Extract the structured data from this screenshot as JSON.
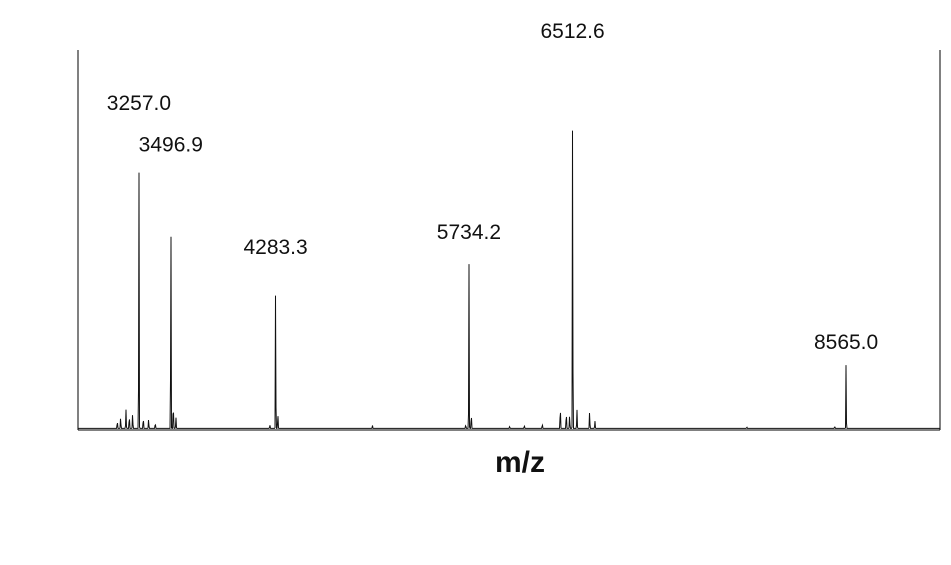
{
  "chart_data": {
    "type": "line",
    "title": "",
    "xlabel": "m/z",
    "ylabel": "",
    "xlim": [
      2800,
      9270
    ],
    "ylim": [
      0,
      100
    ],
    "grid": false,
    "legend": "none",
    "colors": {
      "trace": "#111111",
      "axis": "#000000",
      "text": "#111111"
    },
    "peaks": [
      {
        "mz": 3257.0,
        "label": "3257.0",
        "intensity": 81
      },
      {
        "mz": 3496.9,
        "label": "3496.9",
        "intensity": 70
      },
      {
        "mz": 4283.3,
        "label": "4283.3",
        "intensity": 43
      },
      {
        "mz": 5734.2,
        "label": "5734.2",
        "intensity": 47
      },
      {
        "mz": 6512.6,
        "label": "6512.6",
        "intensity": 100
      },
      {
        "mz": 8565.0,
        "label": "8565.0",
        "intensity": 18
      }
    ],
    "minor_peaks": [
      {
        "mz": 3095,
        "intensity": 2
      },
      {
        "mz": 3120,
        "intensity": 3
      },
      {
        "mz": 3160,
        "intensity": 5
      },
      {
        "mz": 3185,
        "intensity": 3.5
      },
      {
        "mz": 3210,
        "intensity": 4
      },
      {
        "mz": 3290,
        "intensity": 3
      },
      {
        "mz": 3330,
        "intensity": 2.5
      },
      {
        "mz": 3380,
        "intensity": 1.5
      },
      {
        "mz": 3515,
        "intensity": 7
      },
      {
        "mz": 3535,
        "intensity": 3
      },
      {
        "mz": 4240,
        "intensity": 1
      },
      {
        "mz": 4300,
        "intensity": 4
      },
      {
        "mz": 5010,
        "intensity": 0.8
      },
      {
        "mz": 5710,
        "intensity": 1
      },
      {
        "mz": 5752,
        "intensity": 4
      },
      {
        "mz": 6040,
        "intensity": 0.6
      },
      {
        "mz": 6150,
        "intensity": 0.8
      },
      {
        "mz": 6285,
        "intensity": 1.2
      },
      {
        "mz": 6420,
        "intensity": 6
      },
      {
        "mz": 6465,
        "intensity": 4.5
      },
      {
        "mz": 6490,
        "intensity": 3.5
      },
      {
        "mz": 6545,
        "intensity": 5
      },
      {
        "mz": 6640,
        "intensity": 4.5
      },
      {
        "mz": 6680,
        "intensity": 2
      },
      {
        "mz": 7820,
        "intensity": 0.4
      },
      {
        "mz": 8480,
        "intensity": 0.6
      }
    ]
  }
}
